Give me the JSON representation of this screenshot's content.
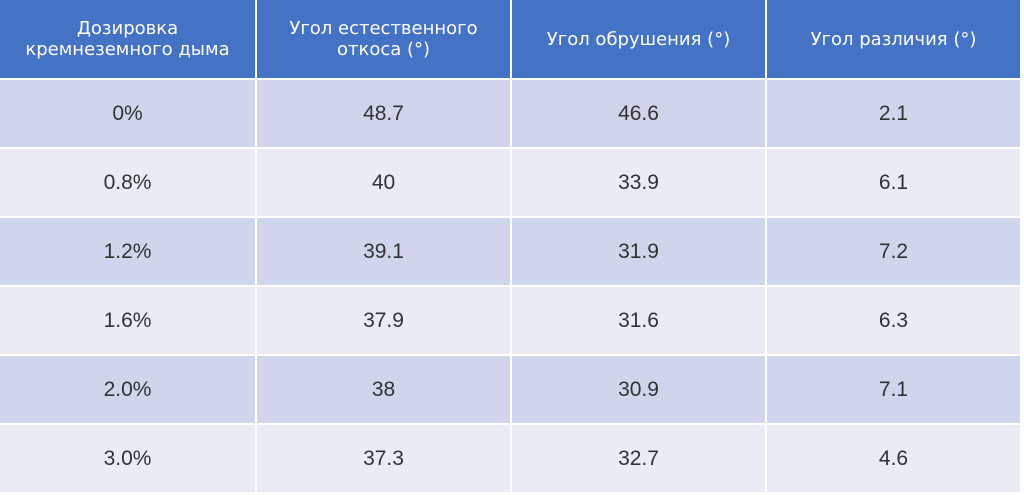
{
  "table": {
    "header": [
      "Дозировка кремнеземного дыма",
      "Угол естественного откоса (°)",
      "Угол обрушения (°)",
      "Угол различия (°)"
    ],
    "rows": [
      [
        "0%",
        "48.7",
        "46.6",
        "2.1"
      ],
      [
        "0.8%",
        "40",
        "33.9",
        "6.1"
      ],
      [
        "1.2%",
        "39.1",
        "31.9",
        "7.2"
      ],
      [
        "1.6%",
        "37.9",
        "31.6",
        "6.3"
      ],
      [
        "2.0%",
        "38",
        "30.9",
        "7.1"
      ],
      [
        "3.0%",
        "37.3",
        "32.7",
        "4.6"
      ]
    ]
  }
}
